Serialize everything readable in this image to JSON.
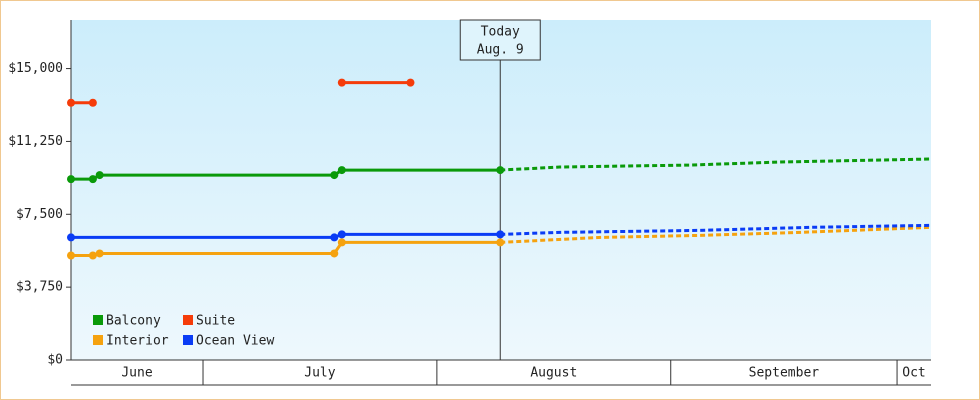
{
  "chart_data": {
    "type": "line",
    "xlim": [
      12.5,
      126.5
    ],
    "xticks": [
      {
        "value": 0,
        "label": "June"
      },
      {
        "value": 30,
        "label": "July"
      },
      {
        "value": 61,
        "label": "August"
      },
      {
        "value": 92,
        "label": "September"
      },
      {
        "value": 122,
        "label": "Oct"
      }
    ],
    "ylim": [
      0,
      17500
    ],
    "yticks": [
      {
        "value": 0,
        "label": "$0"
      },
      {
        "value": 3750,
        "label": "$3,750"
      },
      {
        "value": 7500,
        "label": "$7,500"
      },
      {
        "value": 11250,
        "label": "$11,250"
      },
      {
        "value": 15000,
        "label": "$15,000"
      }
    ],
    "annotation": {
      "lines": [
        "Today",
        "Aug. 9"
      ],
      "x": 69.4
    },
    "legend": "lower left",
    "series": [
      {
        "name": "Balcony",
        "color": "#0a9a0a",
        "x": [
          12.5,
          15.4,
          16.3,
          47.4,
          48.4,
          69.4
        ],
        "values": [
          9310,
          9310,
          9517,
          9517,
          9776,
          9776
        ],
        "forecast": {
          "x": [
            69.4,
            77.3,
            94.6,
            106.5,
            126.5
          ],
          "values": [
            9776,
            9931,
            10034,
            10190,
            10345
          ]
        }
      },
      {
        "name": "Interior",
        "color": "#f5a20f",
        "x": [
          12.5,
          15.4,
          16.3,
          47.4,
          48.4,
          69.4
        ],
        "values": [
          5379,
          5379,
          5483,
          5483,
          6052,
          6052
        ],
        "forecast": {
          "x": [
            69.4,
            82.7,
            95.9,
            109.2,
            126.5
          ],
          "values": [
            6052,
            6310,
            6414,
            6569,
            6828
          ]
        }
      },
      {
        "name": "Suite",
        "color": "#f53c0a",
        "x": [
          12.5,
          15.4,
          40,
          48.4,
          57.5
        ],
        "values": [
          13241,
          13241,
          null,
          14276,
          14276
        ]
      },
      {
        "name": "Ocean View",
        "color": "#0a3cf5",
        "x": [
          12.5,
          47.4,
          48.4,
          69.4
        ],
        "values": [
          6310,
          6310,
          6466,
          6466
        ],
        "forecast": {
          "x": [
            69.4,
            77.3,
            95.9,
            110.5,
            126.5
          ],
          "values": [
            6466,
            6569,
            6672,
            6828,
            6931
          ]
        }
      }
    ]
  }
}
